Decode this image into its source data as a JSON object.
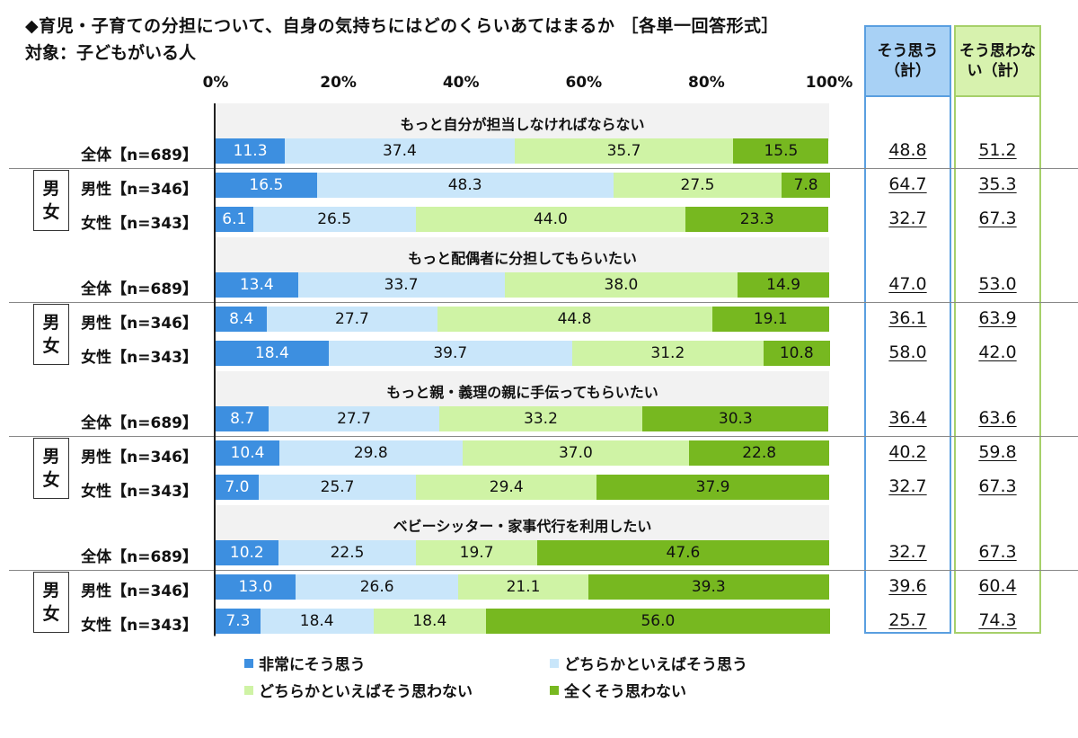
{
  "title": "◆育児・子育ての分担について、自身の気持ちにはどのくらいあてはまるか ［各単一回答形式］",
  "subtitle": "対象：子どもがいる人",
  "column_headers": {
    "agree": "そう思う（計）",
    "disagree": "そう思わない（計）"
  },
  "gender_box": [
    "男",
    "女"
  ],
  "colors": {
    "very_much_agree": "#3d8fe0",
    "somewhat_agree": "#c9e6fa",
    "somewhat_disagree": "#cff3a5",
    "not_at_all": "#77b820"
  },
  "chart_data": {
    "type": "bar",
    "orientation": "horizontal-stacked-100",
    "x_ticks": [
      "0%",
      "20%",
      "40%",
      "60%",
      "80%",
      "100%"
    ],
    "xlim": [
      0,
      100
    ],
    "legend": [
      "非常にそう思う",
      "どちらかといえばそう思う",
      "どちらかといえばそう思わない",
      "全くそう思わない"
    ],
    "groups": [
      {
        "title": "もっと自分が担当しなければならない",
        "rows": [
          {
            "label": "全体【n=689】",
            "values": [
              11.3,
              37.4,
              35.7,
              15.5
            ],
            "labels": [
              "11.3",
              "37.4",
              "35.7",
              "15.5"
            ],
            "agree_total": "48.8",
            "disagree_total": "51.2"
          },
          {
            "label": "男性【n=346】",
            "values": [
              16.5,
              48.3,
              27.5,
              7.8
            ],
            "labels": [
              "16.5",
              "48.3",
              "27.5",
              "7.8"
            ],
            "agree_total": "64.7",
            "disagree_total": "35.3"
          },
          {
            "label": "女性【n=343】",
            "values": [
              6.1,
              26.5,
              44.0,
              23.3
            ],
            "labels": [
              "6.1",
              "26.5",
              "44.0",
              "23.3"
            ],
            "agree_total": "32.7",
            "disagree_total": "67.3"
          }
        ]
      },
      {
        "title": "もっと配偶者に分担してもらいたい",
        "rows": [
          {
            "label": "全体【n=689】",
            "values": [
              13.4,
              33.7,
              38.0,
              14.9
            ],
            "labels": [
              "13.4",
              "33.7",
              "38.0",
              "14.9"
            ],
            "agree_total": "47.0",
            "disagree_total": "53.0"
          },
          {
            "label": "男性【n=346】",
            "values": [
              8.4,
              27.7,
              44.8,
              19.1
            ],
            "labels": [
              "8.4",
              "27.7",
              "44.8",
              "19.1"
            ],
            "agree_total": "36.1",
            "disagree_total": "63.9"
          },
          {
            "label": "女性【n=343】",
            "values": [
              18.4,
              39.7,
              31.2,
              10.8
            ],
            "labels": [
              "18.4",
              "39.7",
              "31.2",
              "10.8"
            ],
            "agree_total": "58.0",
            "disagree_total": "42.0"
          }
        ]
      },
      {
        "title": "もっと親・義理の親に手伝ってもらいたい",
        "rows": [
          {
            "label": "全体【n=689】",
            "values": [
              8.7,
              27.7,
              33.2,
              30.3
            ],
            "labels": [
              "8.7",
              "27.7",
              "33.2",
              "30.3"
            ],
            "agree_total": "36.4",
            "disagree_total": "63.6"
          },
          {
            "label": "男性【n=346】",
            "values": [
              10.4,
              29.8,
              37.0,
              22.8
            ],
            "labels": [
              "10.4",
              "29.8",
              "37.0",
              "22.8"
            ],
            "agree_total": "40.2",
            "disagree_total": "59.8"
          },
          {
            "label": "女性【n=343】",
            "values": [
              7.0,
              25.7,
              29.4,
              37.9
            ],
            "labels": [
              "7.0",
              "25.7",
              "29.4",
              "37.9"
            ],
            "agree_total": "32.7",
            "disagree_total": "67.3"
          }
        ]
      },
      {
        "title": "ベビーシッター・家事代行を利用したい",
        "rows": [
          {
            "label": "全体【n=689】",
            "values": [
              10.2,
              22.5,
              19.7,
              47.6
            ],
            "labels": [
              "10.2",
              "22.5",
              "19.7",
              "47.6"
            ],
            "agree_total": "32.7",
            "disagree_total": "67.3"
          },
          {
            "label": "男性【n=346】",
            "values": [
              13.0,
              26.6,
              21.1,
              39.3
            ],
            "labels": [
              "13.0",
              "26.6",
              "21.1",
              "39.3"
            ],
            "agree_total": "39.6",
            "disagree_total": "60.4"
          },
          {
            "label": "女性【n=343】",
            "values": [
              7.3,
              18.4,
              18.4,
              56.0
            ],
            "labels": [
              "7.3",
              "18.4",
              "18.4",
              "56.0"
            ],
            "agree_total": "25.7",
            "disagree_total": "74.3"
          }
        ]
      }
    ]
  }
}
